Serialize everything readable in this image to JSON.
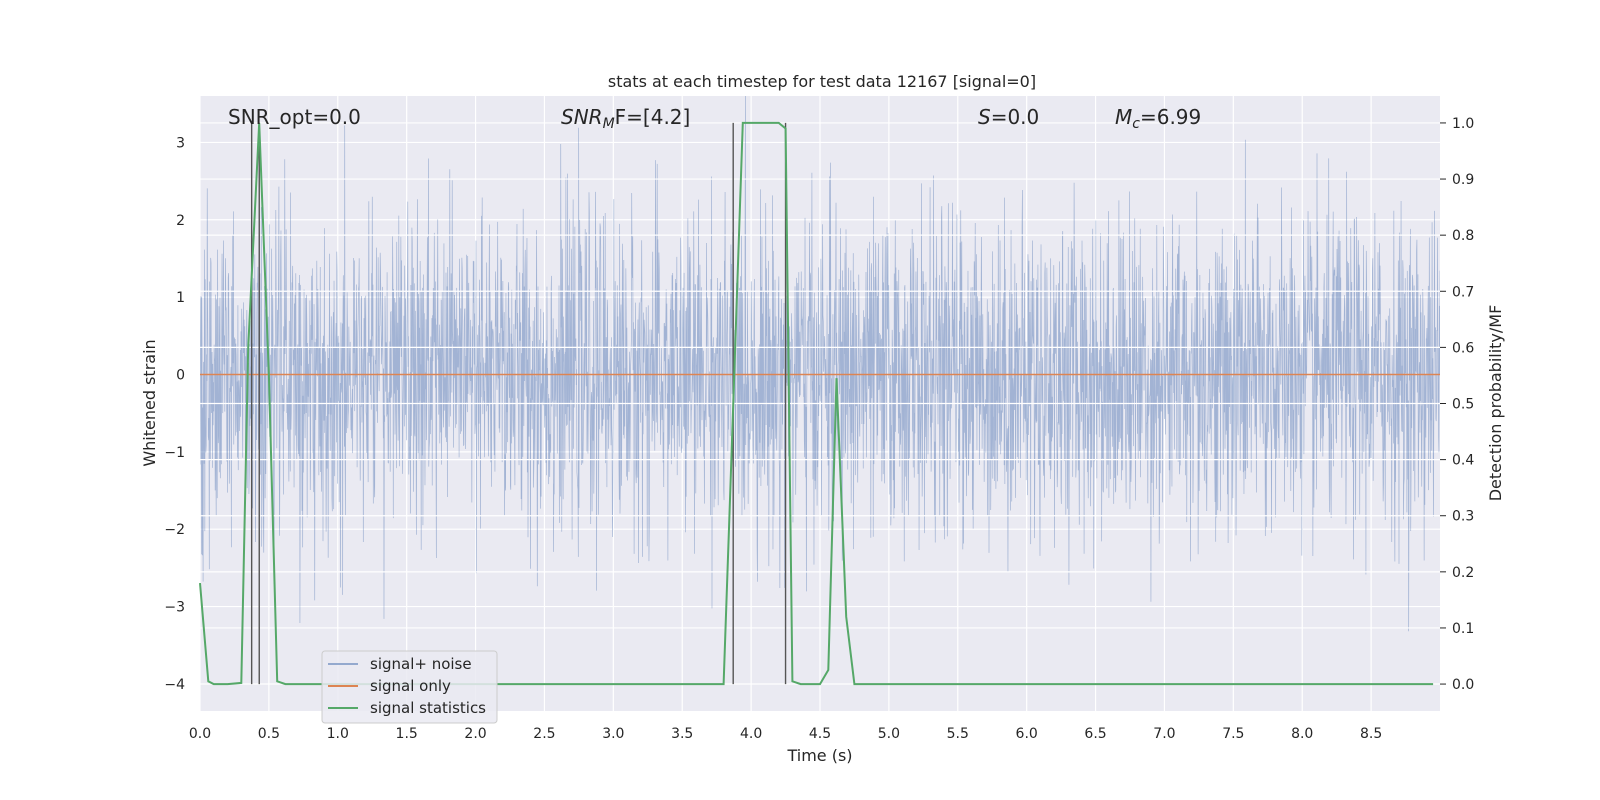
{
  "chart_data": {
    "type": "line",
    "title": "stats at each timestep for test data 12167 [signal=0]",
    "xlabel": "Time (s)",
    "ylabel_left": "Whitened strain",
    "ylabel_right": "Detection probability/MF",
    "xlim": [
      0.0,
      9.0
    ],
    "ylim_left": [
      -4.35,
      3.6
    ],
    "ylim_right": [
      -0.048,
      1.048
    ],
    "x_ticks": [
      "0.0",
      "0.5",
      "1.0",
      "1.5",
      "2.0",
      "2.5",
      "3.0",
      "3.5",
      "4.0",
      "4.5",
      "5.0",
      "5.5",
      "6.0",
      "6.5",
      "7.0",
      "7.5",
      "8.0",
      "8.5"
    ],
    "y_ticks_left": [
      3,
      2,
      1,
      0,
      -1,
      -2,
      -3,
      -4
    ],
    "y_ticks_left_labels": [
      "3",
      "2",
      "1",
      "0",
      "−1",
      "−2",
      "−3",
      "−4"
    ],
    "y_ticks_right": [
      "1.0",
      "0.9",
      "0.8",
      "0.7",
      "0.6",
      "0.5",
      "0.4",
      "0.3",
      "0.2",
      "0.1",
      "0.0"
    ],
    "grid": true,
    "legend_position": "lower-left",
    "colors": {
      "background": "#EAEAF2",
      "noise": "#4C72B0",
      "signal": "#DD8452",
      "statistics": "#55A868",
      "vlines": "#555555"
    },
    "annotations": {
      "snr_opt": "SNR_opt=0.0",
      "snr_mf_base": "SNR",
      "snr_mf_sub": "M",
      "snr_mf_rest": "F=[4.2]",
      "s_italic": "S",
      "s_rest": "=0.0",
      "mc_base": "M",
      "mc_sub": "c",
      "mc_rest": "=6.99"
    },
    "series": [
      {
        "name": "signal+ noise",
        "description_values": "whitened strain noise, roughly gaussian, amplitude within [-3.9, 3.6]",
        "sample_rate_hz": 4096,
        "y_range": [
          -3.9,
          3.6
        ]
      },
      {
        "name": "signal only",
        "x": [
          0.0,
          9.0
        ],
        "y": [
          0.0,
          0.0
        ]
      },
      {
        "name": "signal statistics",
        "x": [
          0.0,
          0.06,
          0.1,
          0.2,
          0.3,
          0.35,
          0.43,
          0.5,
          0.56,
          0.62,
          0.7,
          3.8,
          3.85,
          3.94,
          4.0,
          4.2,
          4.25,
          4.3,
          4.36,
          4.42,
          4.5,
          4.56,
          4.62,
          4.69,
          4.75,
          8.95
        ],
        "y": [
          0.18,
          0.005,
          0.0,
          0.0,
          0.002,
          0.6,
          1.0,
          0.55,
          0.005,
          0.0,
          0.0,
          0.0,
          0.35,
          1.0,
          1.0,
          1.0,
          0.99,
          0.005,
          0.0,
          0.0,
          0.0,
          0.025,
          0.545,
          0.12,
          0.0,
          0.0
        ]
      }
    ],
    "vertical_lines_x": [
      0.375,
      0.43,
      3.87,
      4.25
    ]
  }
}
